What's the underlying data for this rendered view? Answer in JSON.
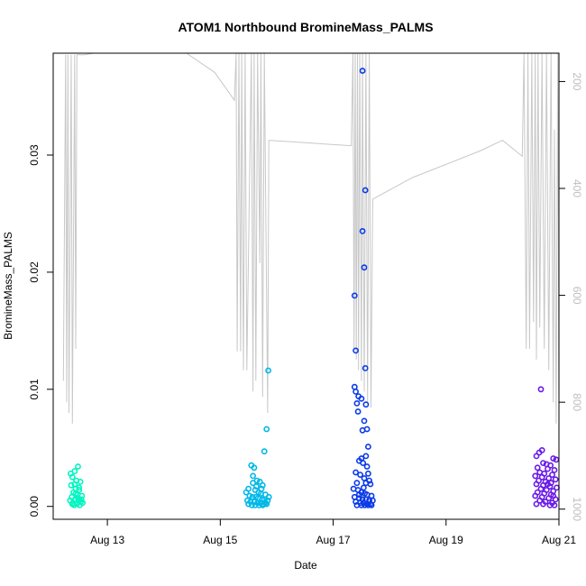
{
  "chart_data": {
    "type": "scatter",
    "title": "ATOM1 Northbound BromineMass_PALMS",
    "xlabel": "Date",
    "ylabel": "BromineMass_PALMS",
    "x_unit": "days since Aug 12 00:00",
    "xlim": [
      0.04,
      9.0
    ],
    "ylim": [
      -0.0011,
      0.0387
    ],
    "x_ticks": [
      {
        "value": 1,
        "label": "Aug 13"
      },
      {
        "value": 3,
        "label": "Aug 15"
      },
      {
        "value": 5,
        "label": "Aug 17"
      },
      {
        "value": 7,
        "label": "Aug 19"
      },
      {
        "value": 9,
        "label": "Aug 21"
      }
    ],
    "y_ticks": [
      {
        "value": 0.0,
        "label": "0.00"
      },
      {
        "value": 0.01,
        "label": "0.01"
      },
      {
        "value": 0.02,
        "label": "0.02"
      },
      {
        "value": 0.03,
        "label": "0.03"
      }
    ],
    "y2_ticks": [
      {
        "value": 200,
        "label": "200"
      },
      {
        "value": 400,
        "label": "400"
      },
      {
        "value": 600,
        "label": "600"
      },
      {
        "value": 800,
        "label": "800"
      },
      {
        "value": 1000,
        "label": "1000"
      }
    ],
    "y2lim": [
      1019,
      147
    ],
    "grid": false,
    "legend": "none",
    "series": [
      {
        "color": "#00f5c0",
        "points": [
          [
            0.35,
            0.0028
          ],
          [
            0.42,
            0.003
          ],
          [
            0.48,
            0.0034
          ],
          [
            0.38,
            0.0025
          ],
          [
            0.45,
            0.0022
          ],
          [
            0.52,
            0.0021
          ],
          [
            0.36,
            0.0018
          ],
          [
            0.44,
            0.0015
          ],
          [
            0.5,
            0.0014
          ],
          [
            0.4,
            0.0012
          ],
          [
            0.47,
            0.001
          ],
          [
            0.55,
            0.0009
          ],
          [
            0.37,
            0.0008
          ],
          [
            0.43,
            0.0006
          ],
          [
            0.49,
            0.0005
          ],
          [
            0.53,
            0.0004
          ],
          [
            0.39,
            0.0003
          ],
          [
            0.46,
            0.0002
          ],
          [
            0.41,
            0.0001
          ],
          [
            0.51,
            0.0001
          ],
          [
            0.56,
            0.0003
          ],
          [
            0.34,
            0.0005
          ],
          [
            0.48,
            0.0007
          ],
          [
            0.44,
            0.0011
          ],
          [
            0.5,
            0.0016
          ],
          [
            0.42,
            0.0019
          ],
          [
            0.54,
            0.0006
          ],
          [
            0.38,
            0.0002
          ]
        ]
      },
      {
        "color": "#00b8e8",
        "points": [
          [
            3.85,
            0.0116
          ],
          [
            3.82,
            0.0066
          ],
          [
            3.78,
            0.0047
          ],
          [
            3.55,
            0.0035
          ],
          [
            3.6,
            0.0033
          ],
          [
            3.65,
            0.0022
          ],
          [
            3.7,
            0.0021
          ],
          [
            3.58,
            0.002
          ],
          [
            3.75,
            0.0018
          ],
          [
            3.5,
            0.0015
          ],
          [
            3.62,
            0.0014
          ],
          [
            3.68,
            0.0012
          ],
          [
            3.72,
            0.0011
          ],
          [
            3.8,
            0.001
          ],
          [
            3.52,
            0.0009
          ],
          [
            3.57,
            0.0008
          ],
          [
            3.63,
            0.0008
          ],
          [
            3.67,
            0.0007
          ],
          [
            3.74,
            0.0006
          ],
          [
            3.78,
            0.0006
          ],
          [
            3.84,
            0.0005
          ],
          [
            3.48,
            0.0005
          ],
          [
            3.54,
            0.0004
          ],
          [
            3.6,
            0.0004
          ],
          [
            3.66,
            0.0003
          ],
          [
            3.71,
            0.0003
          ],
          [
            3.77,
            0.0002
          ],
          [
            3.82,
            0.0002
          ],
          [
            3.5,
            0.0002
          ],
          [
            3.56,
            0.0001
          ],
          [
            3.62,
            0.0001
          ],
          [
            3.69,
            0.0001
          ],
          [
            3.75,
            0.0001
          ],
          [
            3.86,
            0.0008
          ],
          [
            3.46,
            0.0012
          ],
          [
            3.58,
            0.0026
          ],
          [
            3.64,
            0.0017
          ],
          [
            3.73,
            0.0015
          ],
          [
            3.8,
            0.0003
          ]
        ]
      },
      {
        "color": "#0a3ae8",
        "points": [
          [
            5.52,
            0.0372
          ],
          [
            5.57,
            0.027
          ],
          [
            5.52,
            0.0235
          ],
          [
            5.55,
            0.0204
          ],
          [
            5.38,
            0.018
          ],
          [
            5.4,
            0.0133
          ],
          [
            5.57,
            0.0118
          ],
          [
            5.38,
            0.0102
          ],
          [
            5.4,
            0.0098
          ],
          [
            5.45,
            0.0094
          ],
          [
            5.5,
            0.0092
          ],
          [
            5.42,
            0.0088
          ],
          [
            5.58,
            0.0087
          ],
          [
            5.44,
            0.0081
          ],
          [
            5.55,
            0.0073
          ],
          [
            5.52,
            0.0065
          ],
          [
            5.6,
            0.0066
          ],
          [
            5.62,
            0.0051
          ],
          [
            5.58,
            0.0043
          ],
          [
            5.5,
            0.0041
          ],
          [
            5.46,
            0.0039
          ],
          [
            5.53,
            0.0037
          ],
          [
            5.6,
            0.0034
          ],
          [
            5.4,
            0.0029
          ],
          [
            5.62,
            0.0028
          ],
          [
            5.48,
            0.0027
          ],
          [
            5.55,
            0.0024
          ],
          [
            5.64,
            0.0022
          ],
          [
            5.42,
            0.002
          ],
          [
            5.58,
            0.002
          ],
          [
            5.66,
            0.0019
          ],
          [
            5.36,
            0.0015
          ],
          [
            5.44,
            0.0014
          ],
          [
            5.5,
            0.0012
          ],
          [
            5.56,
            0.0011
          ],
          [
            5.6,
            0.001
          ],
          [
            5.68,
            0.0009
          ],
          [
            5.38,
            0.0008
          ],
          [
            5.46,
            0.0007
          ],
          [
            5.52,
            0.0006
          ],
          [
            5.58,
            0.0006
          ],
          [
            5.64,
            0.0005
          ],
          [
            5.7,
            0.0005
          ],
          [
            5.4,
            0.0004
          ],
          [
            5.48,
            0.0003
          ],
          [
            5.54,
            0.0003
          ],
          [
            5.6,
            0.0002
          ],
          [
            5.66,
            0.0002
          ],
          [
            5.42,
            0.0001
          ],
          [
            5.5,
            0.0001
          ],
          [
            5.56,
            0.0001
          ],
          [
            5.62,
            0.0001
          ],
          [
            5.68,
            0.0001
          ],
          [
            5.46,
            0.001
          ],
          [
            5.54,
            0.0016
          ]
        ]
      },
      {
        "color": "#6a1ae8",
        "points": [
          [
            8.68,
            0.01
          ],
          [
            8.7,
            0.0048
          ],
          [
            8.65,
            0.0046
          ],
          [
            8.6,
            0.0043
          ],
          [
            8.9,
            0.0041
          ],
          [
            8.95,
            0.004
          ],
          [
            8.72,
            0.0037
          ],
          [
            8.78,
            0.0036
          ],
          [
            8.85,
            0.0035
          ],
          [
            8.62,
            0.0033
          ],
          [
            8.8,
            0.0032
          ],
          [
            8.92,
            0.0031
          ],
          [
            8.66,
            0.0029
          ],
          [
            8.74,
            0.0028
          ],
          [
            8.88,
            0.0027
          ],
          [
            8.58,
            0.0026
          ],
          [
            8.7,
            0.0025
          ],
          [
            8.82,
            0.0024
          ],
          [
            8.94,
            0.0023
          ],
          [
            8.64,
            0.0022
          ],
          [
            8.76,
            0.0021
          ],
          [
            8.86,
            0.002
          ],
          [
            8.6,
            0.0019
          ],
          [
            8.72,
            0.0018
          ],
          [
            8.84,
            0.0017
          ],
          [
            8.96,
            0.0016
          ],
          [
            8.68,
            0.0015
          ],
          [
            8.78,
            0.0014
          ],
          [
            8.9,
            0.0013
          ],
          [
            8.62,
            0.0012
          ],
          [
            8.74,
            0.0011
          ],
          [
            8.86,
            0.001
          ],
          [
            8.58,
            0.0009
          ],
          [
            8.7,
            0.0008
          ],
          [
            8.82,
            0.0007
          ],
          [
            8.94,
            0.0006
          ],
          [
            8.66,
            0.0005
          ],
          [
            8.76,
            0.0004
          ],
          [
            8.88,
            0.0003
          ],
          [
            8.6,
            0.0002
          ],
          [
            8.72,
            0.0002
          ],
          [
            8.84,
            0.0001
          ],
          [
            8.92,
            0.0001
          ],
          [
            8.8,
            0.0019
          ],
          [
            8.9,
            0.0009
          ]
        ]
      }
    ],
    "altitude_track": {
      "color": "#c8c8c8",
      "points": [
        [
          0.22,
          760
        ],
        [
          0.26,
          150
        ],
        [
          0.28,
          800
        ],
        [
          0.3,
          150
        ],
        [
          0.32,
          820
        ],
        [
          0.36,
          150
        ],
        [
          0.38,
          840
        ],
        [
          0.42,
          150
        ],
        [
          0.44,
          700
        ],
        [
          0.46,
          150
        ],
        [
          0.6,
          150
        ],
        [
          0.75,
          147
        ],
        [
          1.2,
          147
        ],
        [
          2.4,
          147
        ],
        [
          2.9,
          183
        ],
        [
          3.25,
          235
        ],
        [
          3.28,
          147
        ],
        [
          3.3,
          705
        ],
        [
          3.33,
          147
        ],
        [
          3.36,
          705
        ],
        [
          3.38,
          147
        ],
        [
          3.41,
          740
        ],
        [
          3.44,
          147
        ],
        [
          3.47,
          740
        ],
        [
          3.55,
          147
        ],
        [
          3.58,
          780
        ],
        [
          3.6,
          147
        ],
        [
          3.63,
          760
        ],
        [
          3.66,
          147
        ],
        [
          3.7,
          540
        ],
        [
          3.72,
          147
        ],
        [
          3.75,
          790
        ],
        [
          3.78,
          147
        ],
        [
          3.84,
          820
        ],
        [
          3.86,
          310
        ],
        [
          4.3,
          313
        ],
        [
          5.0,
          318
        ],
        [
          5.32,
          320
        ],
        [
          5.35,
          147
        ],
        [
          5.37,
          700
        ],
        [
          5.39,
          147
        ],
        [
          5.41,
          720
        ],
        [
          5.43,
          147
        ],
        [
          5.45,
          740
        ],
        [
          5.47,
          147
        ],
        [
          5.5,
          760
        ],
        [
          5.52,
          147
        ],
        [
          5.55,
          780
        ],
        [
          5.58,
          147
        ],
        [
          5.61,
          800
        ],
        [
          5.64,
          147
        ],
        [
          5.67,
          810
        ],
        [
          5.7,
          420
        ],
        [
          6.4,
          380
        ],
        [
          7.6,
          330
        ],
        [
          8.0,
          310
        ],
        [
          8.35,
          340
        ],
        [
          8.38,
          147
        ],
        [
          8.42,
          700
        ],
        [
          8.45,
          147
        ],
        [
          8.48,
          700
        ],
        [
          8.52,
          147
        ],
        [
          8.55,
          650
        ],
        [
          8.58,
          147
        ],
        [
          8.6,
          720
        ],
        [
          8.63,
          147
        ],
        [
          8.66,
          660
        ],
        [
          8.7,
          147
        ],
        [
          8.74,
          700
        ],
        [
          8.78,
          147
        ],
        [
          8.82,
          740
        ],
        [
          8.86,
          147
        ],
        [
          8.9,
          800
        ],
        [
          8.92,
          290
        ],
        [
          8.95,
          840
        ],
        [
          8.98,
          147
        ],
        [
          9.0,
          800
        ],
        [
          9.02,
          270
        ]
      ]
    }
  }
}
